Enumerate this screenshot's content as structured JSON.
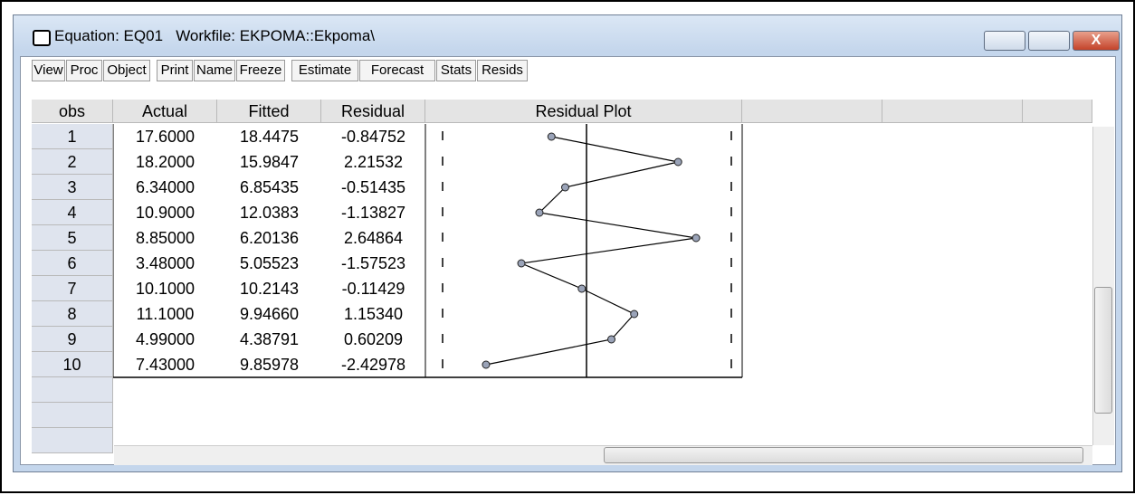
{
  "window": {
    "title": "Equation: EQ01   Workfile: EKPOMA::Ekpoma\\"
  },
  "toolbar": [
    [
      "View",
      "Proc",
      "Object"
    ],
    [
      "Print",
      "Name",
      "Freeze"
    ],
    [
      "Estimate",
      "Forecast",
      "Stats",
      "Resids"
    ]
  ],
  "table": {
    "columns": [
      "obs",
      "Actual",
      "Fitted",
      "Residual",
      "Residual Plot"
    ],
    "rows": [
      [
        "1",
        "17.6000",
        "18.4475",
        "-0.84752"
      ],
      [
        "2",
        "18.2000",
        "15.9847",
        "2.21532"
      ],
      [
        "3",
        "6.34000",
        "6.85435",
        "-0.51435"
      ],
      [
        "4",
        "10.9000",
        "12.0383",
        "-1.13827"
      ],
      [
        "5",
        "8.85000",
        "6.20136",
        "2.64864"
      ],
      [
        "6",
        "3.48000",
        "5.05523",
        "-1.57523"
      ],
      [
        "7",
        "10.1000",
        "10.2143",
        "-0.11429"
      ],
      [
        "8",
        "11.1000",
        "9.94660",
        "1.15340"
      ],
      [
        "9",
        "4.99000",
        "4.38791",
        "0.60209"
      ],
      [
        "10",
        "7.43000",
        "9.85978",
        "-2.42978"
      ]
    ]
  }
}
